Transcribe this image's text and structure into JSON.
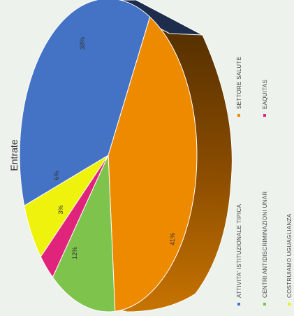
{
  "chart_data": {
    "type": "pie",
    "title": "Entrate",
    "legend_position": "right",
    "slices": [
      {
        "name": "ATTIVITA' ISTITUZIONALE TIPICA",
        "value": 38,
        "label": "38%",
        "color": "#4472c4"
      },
      {
        "name": "SETTORE SALUTE",
        "value": 41,
        "label": "41%",
        "color": "#ee8a00"
      },
      {
        "name": "CENTRI ANTIDISCRIMINAZIONI UNAR",
        "value": 12,
        "label": "12%",
        "color": "#7ec34c"
      },
      {
        "name": "EAQUITAS",
        "value": 3,
        "label": "3%",
        "color": "#e0247b"
      },
      {
        "name": "COSTRUIAMO UGUAGLIANZA",
        "value": 6,
        "label": "6%",
        "color": "#eef20c"
      }
    ],
    "hidden_slice": {
      "value": 0,
      "color": "#1f2d4d"
    }
  }
}
